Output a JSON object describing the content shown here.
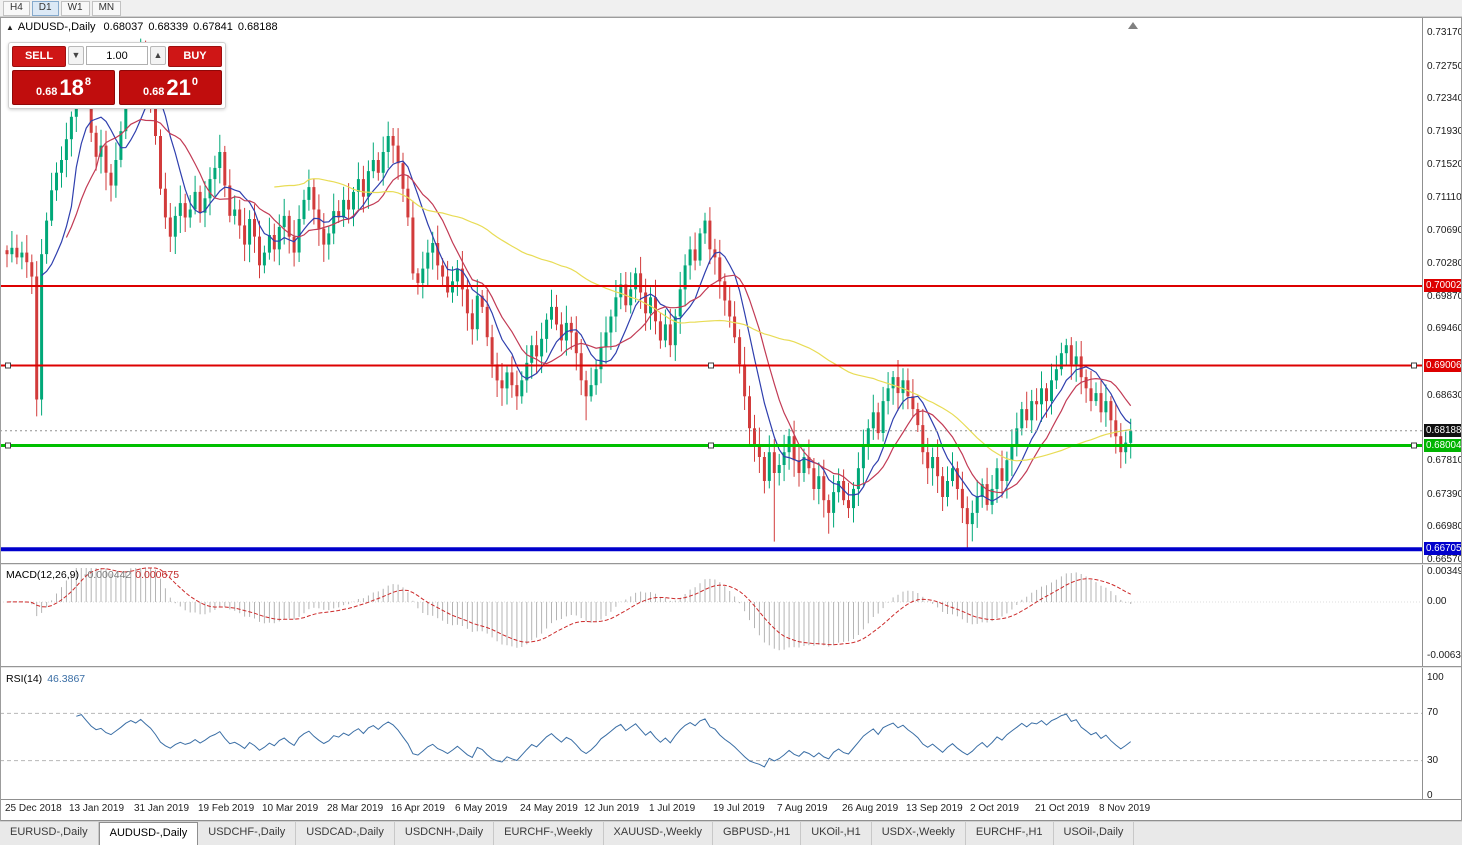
{
  "toolbar": {
    "timeframes": [
      {
        "label": "H4",
        "active": false
      },
      {
        "label": "D1",
        "active": true
      },
      {
        "label": "W1",
        "active": false
      },
      {
        "label": "MN",
        "active": false
      }
    ]
  },
  "title_bar": {
    "icon": "▲",
    "symbol": "AUDUSD-,Daily",
    "open": "0.68037",
    "high": "0.68339",
    "low": "0.67841",
    "close": "0.68188"
  },
  "trade_panel": {
    "sell_label": "SELL",
    "buy_label": "BUY",
    "volume": "1.00",
    "spin_down_glyph": "▼",
    "spin_up_glyph": "▲",
    "sell_price": {
      "prefix": "0.68",
      "big": "18",
      "sup": "8"
    },
    "buy_price": {
      "prefix": "0.68",
      "big": "21",
      "sup": "0"
    }
  },
  "chart_data": {
    "type": "candlestick",
    "symbol": "AUDUSD-",
    "timeframe": "Daily",
    "current_ohlc": {
      "open": 0.68037,
      "high": 0.68339,
      "low": 0.67841,
      "close": 0.68188
    },
    "price_range": [
      0.6657,
      0.7317
    ],
    "first_open": 0.7045,
    "closes": [
      0.704,
      0.7048,
      0.7036,
      0.7042,
      0.703,
      0.7012,
      0.6858,
      0.704,
      0.7082,
      0.712,
      0.7142,
      0.7158,
      0.7184,
      0.7212,
      0.7252,
      0.7278,
      0.7236,
      0.7192,
      0.7162,
      0.7176,
      0.7142,
      0.7126,
      0.7158,
      0.7194,
      0.7238,
      0.7268,
      0.7252,
      0.7292,
      0.7262,
      0.7234,
      0.7188,
      0.7122,
      0.7086,
      0.7062,
      0.7088,
      0.7104,
      0.7086,
      0.7096,
      0.7118,
      0.7092,
      0.711,
      0.7134,
      0.7148,
      0.7168,
      0.7126,
      0.7088,
      0.7096,
      0.7076,
      0.7052,
      0.7084,
      0.7062,
      0.7026,
      0.7042,
      0.7064,
      0.7046,
      0.7074,
      0.7088,
      0.7062,
      0.7042,
      0.7084,
      0.7108,
      0.7124,
      0.7096,
      0.7072,
      0.7052,
      0.7066,
      0.7094,
      0.7086,
      0.7108,
      0.7096,
      0.7118,
      0.7134,
      0.7112,
      0.7144,
      0.7158,
      0.7142,
      0.7168,
      0.7188,
      0.7176,
      0.7154,
      0.7122,
      0.7086,
      0.7016,
      0.7004,
      0.7022,
      0.7042,
      0.7054,
      0.7026,
      0.7012,
      0.6992,
      0.7006,
      0.7022,
      0.6996,
      0.6966,
      0.6946,
      0.6988,
      0.6974,
      0.6936,
      0.6902,
      0.6882,
      0.6872,
      0.6892,
      0.6876,
      0.6862,
      0.6882,
      0.6904,
      0.6926,
      0.6912,
      0.6934,
      0.6958,
      0.6974,
      0.6952,
      0.6932,
      0.6954,
      0.6942,
      0.6916,
      0.6882,
      0.6862,
      0.6876,
      0.6896,
      0.6924,
      0.6942,
      0.6962,
      0.6986,
      0.7002,
      0.6976,
      0.6996,
      0.7016,
      0.6992,
      0.6966,
      0.6986,
      0.6956,
      0.6932,
      0.6952,
      0.6926,
      0.6962,
      0.6996,
      0.7026,
      0.7046,
      0.7032,
      0.7066,
      0.7082,
      0.7046,
      0.7036,
      0.7006,
      0.6982,
      0.6962,
      0.6936,
      0.6902,
      0.6862,
      0.6822,
      0.6802,
      0.6786,
      0.6756,
      0.6792,
      0.6766,
      0.6776,
      0.6792,
      0.6812,
      0.6782,
      0.6766,
      0.6786,
      0.6772,
      0.6746,
      0.6762,
      0.6732,
      0.6716,
      0.6742,
      0.6756,
      0.6732,
      0.6722,
      0.6746,
      0.6772,
      0.6802,
      0.6822,
      0.6842,
      0.6816,
      0.6856,
      0.6872,
      0.6886,
      0.6866,
      0.6882,
      0.6862,
      0.6846,
      0.6826,
      0.6792,
      0.6772,
      0.6786,
      0.6762,
      0.6736,
      0.6756,
      0.6772,
      0.6746,
      0.6722,
      0.6702,
      0.6716,
      0.6736,
      0.6752,
      0.6726,
      0.6746,
      0.6772,
      0.6756,
      0.6782,
      0.6802,
      0.6822,
      0.6846,
      0.6832,
      0.6856,
      0.6852,
      0.6872,
      0.6856,
      0.6882,
      0.6896,
      0.6916,
      0.6926,
      0.6902,
      0.6912,
      0.6886,
      0.6872,
      0.6856,
      0.6866,
      0.6842,
      0.6856,
      0.6832,
      0.6812,
      0.6792,
      0.6804,
      0.68188
    ],
    "overrides": {
      "7": {
        "low": 0.6838
      },
      "15": {
        "high": 0.7296
      },
      "27": {
        "high": 0.731
      },
      "77": {
        "high": 0.7206
      },
      "103": {
        "low": 0.6845
      },
      "117": {
        "low": 0.6832
      },
      "141": {
        "high": 0.7092
      },
      "155": {
        "low": 0.668
      },
      "166": {
        "low": 0.669
      },
      "194": {
        "low": 0.6671
      },
      "214": {
        "high": 0.6934
      },
      "225": {
        "low": 0.6772
      },
      "227": {
        "open": 0.68037,
        "high": 0.68339,
        "low": 0.67841,
        "close": 0.68188
      }
    },
    "candle_up_color": "#00a878",
    "candle_down_color": "#d23b3b",
    "moving_averages": [
      {
        "period": 8,
        "color": "#2f3fae"
      },
      {
        "period": 13,
        "color": "#c23b55"
      },
      {
        "period": 55,
        "color": "#e8dc55"
      }
    ],
    "hlines": [
      {
        "price": 0.70002,
        "color": "#dd0000",
        "width": 2,
        "handles": false
      },
      {
        "price": 0.69006,
        "color": "#dd0000",
        "width": 2,
        "handles": true
      },
      {
        "price": 0.68004,
        "color": "#00c000",
        "width": 3,
        "handles": true
      },
      {
        "price": 0.66705,
        "color": "#0000cc",
        "width": 4,
        "handles": false
      }
    ],
    "current_price_line": {
      "price": 0.68188,
      "color": "#909090"
    },
    "price_axis": {
      "plain_labels": [
        "0.73170",
        "0.72750",
        "0.72340",
        "0.71930",
        "0.71520",
        "0.71110",
        "0.70690",
        "0.70280",
        "0.69870",
        "0.69460",
        "0.68630",
        "0.67810",
        "0.67390",
        "0.66980",
        "0.66570"
      ],
      "markers": [
        {
          "text": "0.70002",
          "price": 0.70002,
          "bg": "#dd0000"
        },
        {
          "text": "0.69006",
          "price": 0.69006,
          "bg": "#dd0000"
        },
        {
          "text": "0.68188",
          "price": 0.68188,
          "bg": "#101010"
        },
        {
          "text": "0.68004",
          "price": 0.68004,
          "bg": "#00b400"
        },
        {
          "text": "0.66705",
          "price": 0.66705,
          "bg": "#0000cc"
        }
      ]
    },
    "dates": [
      "25 Dec 2018",
      "13 Jan 2019",
      "31 Jan 2019",
      "19 Feb 2019",
      "10 Mar 2019",
      "28 Mar 2019",
      "16 Apr 2019",
      "6 May 2019",
      "24 May 2019",
      "12 Jun 2019",
      "1 Jul 2019",
      "19 Jul 2019",
      "7 Aug 2019",
      "26 Aug 2019",
      "13 Sep 2019",
      "2 Oct 2019",
      "21 Oct 2019",
      "8 Nov 2019"
    ],
    "macd": {
      "label": "MACD(12,26,9)",
      "value_main": "-0.000442",
      "value_signal": "0.000675",
      "fast": 12,
      "slow": 26,
      "signal": 9,
      "hist_color": "#b4b4b4",
      "signal_color": "#cc2a2a",
      "axis": [
        {
          "text": "0.00349",
          "value": 0.00349
        },
        {
          "text": "0.00",
          "value": 0
        },
        {
          "text": "-0.00637",
          "value": -0.00637
        }
      ]
    },
    "rsi": {
      "label": "RSI(14)",
      "value": "46.3867",
      "period": 14,
      "color": "#3a6ea5",
      "levels": [
        70,
        30
      ],
      "axis": [
        {
          "text": "100",
          "value": 100
        },
        {
          "text": "70",
          "value": 70
        },
        {
          "text": "30",
          "value": 30
        },
        {
          "text": "0",
          "value": 0
        }
      ]
    }
  },
  "tabs": {
    "items": [
      "EURUSD-,Daily",
      "AUDUSD-,Daily",
      "USDCHF-,Daily",
      "USDCAD-,Daily",
      "USDCNH-,Daily",
      "EURCHF-,Weekly",
      "XAUUSD-,Weekly",
      "GBPUSD-,H1",
      "UKOil-,H1",
      "USDX-,Weekly",
      "EURCHF-,H1",
      "USOil-,Daily"
    ],
    "active_index": 1
  }
}
